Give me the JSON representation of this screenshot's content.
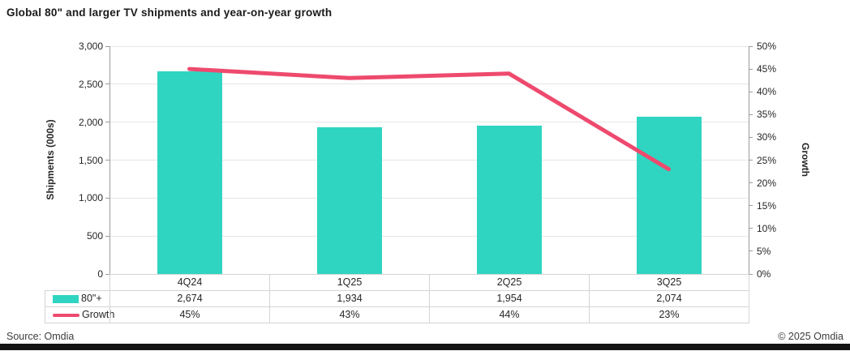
{
  "title": "Global 80\" and larger TV shipments and year-on-year growth",
  "source_note": "Source: Omdia",
  "copyright_note": "© 2025 Omdia",
  "colors": {
    "bar_teal": "#2fd5c1",
    "line_pink": "#ee4a6e",
    "gridline": "#e6e6e6",
    "axis": "#9b9b9b",
    "table_border": "#d4d4d4",
    "text": "#262626"
  },
  "chart_data": {
    "type": "bar+line",
    "title": "Global 80\" and larger TV shipments and year-on-year growth",
    "categories": [
      "4Q24",
      "1Q25",
      "2Q25",
      "3Q25"
    ],
    "series": [
      {
        "name": "80\"+",
        "type": "bar",
        "axis": "left",
        "values": [
          2674,
          1934,
          1954,
          2074
        ],
        "color": "#2fd5c1"
      },
      {
        "name": "Growth",
        "type": "line",
        "axis": "right",
        "values": [
          45,
          43,
          44,
          23
        ],
        "unit": "%",
        "color": "#ee4a6e"
      }
    ],
    "left_axis": {
      "label": "Shipments (000s)",
      "min": 0,
      "max": 3000,
      "step": 500,
      "tick_labels": [
        "3,000",
        "2,500",
        "2,000",
        "1,500",
        "1,000",
        "500",
        "0"
      ]
    },
    "right_axis": {
      "label": "Growth",
      "min": 0,
      "max": 50,
      "step": 5,
      "tick_labels": [
        "50%",
        "45%",
        "40%",
        "35%",
        "30%",
        "25%",
        "20%",
        "15%",
        "10%",
        "5%",
        "0%"
      ]
    },
    "grid": true,
    "legend_position": "data-table-left"
  },
  "table": {
    "column_headers": [
      "4Q24",
      "1Q25",
      "2Q25",
      "3Q25"
    ],
    "rows": [
      {
        "label": "80\"+",
        "swatch": "bar-swatch",
        "values": [
          "2,674",
          "1,934",
          "1,954",
          "2,074"
        ]
      },
      {
        "label": "Growth",
        "swatch": "line-swatch",
        "values": [
          "45%",
          "43%",
          "44%",
          "23%"
        ]
      }
    ]
  }
}
